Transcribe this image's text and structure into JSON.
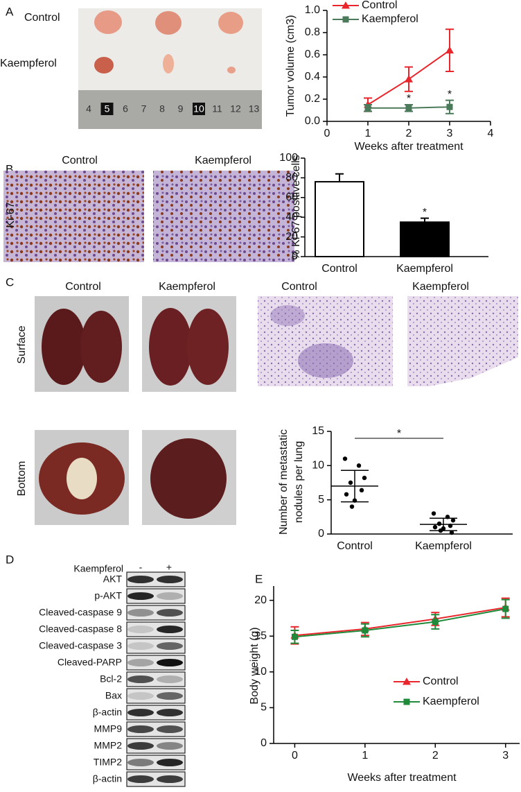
{
  "panels": [
    "A",
    "B",
    "C",
    "D",
    "E"
  ],
  "tumor_photo": {
    "rows": [
      "Control",
      "Kaempferol"
    ],
    "ruler": [
      "4",
      "5",
      "6",
      "7",
      "8",
      "9",
      "10",
      "11",
      "12",
      "13"
    ]
  },
  "ki67": {
    "columns": [
      "Control",
      "Kaempferol"
    ],
    "row": "Ki-67"
  },
  "lung": {
    "columns": [
      "Control",
      "Kaempferol"
    ],
    "rows": [
      "Surface",
      "Bottom"
    ],
    "histology_columns": [
      "Control",
      "Kaempferol"
    ]
  },
  "blot": {
    "treatment": "Kaempferol",
    "lanes": [
      "-",
      "+"
    ],
    "rows": [
      "AKT",
      "p-AKT",
      "Cleaved-caspase 9",
      "Cleaved-caspase 8",
      "Cleaved-caspase 3",
      "Cleaved-PARP",
      "Bcl-2",
      "Bax",
      "β-actin",
      "MMP9",
      "MMP2",
      "TIMP2",
      "β-actin"
    ]
  },
  "chart_data": [
    {
      "type": "line",
      "ylabel": "Tumor volume (cm3)",
      "xlabel": "Weeks after treatment",
      "x": [
        1,
        2,
        3
      ],
      "xlim": [
        0,
        4
      ],
      "xticks": [
        0,
        1,
        2,
        3,
        4
      ],
      "ylim": [
        0,
        1
      ],
      "yticks": [
        {
          "value": 0,
          "label": "0.0"
        },
        0.2,
        0.4,
        0.6,
        0.8,
        {
          "value": 1,
          "label": "1.0"
        }
      ],
      "legend": "top",
      "series": [
        {
          "name": "Control",
          "color": "#e8262b",
          "marker": "triangle",
          "values": [
            0.15,
            0.38,
            0.64
          ],
          "errors": [
            0.06,
            0.11,
            0.19
          ]
        },
        {
          "name": "Kaempferol",
          "color": "#4a7a5a",
          "marker": "square",
          "values": [
            0.12,
            0.12,
            0.13
          ],
          "errors": [
            0.03,
            0.03,
            0.06
          ]
        }
      ],
      "annotations": [
        {
          "x": 2,
          "text": "*"
        },
        {
          "x": 3,
          "text": "*"
        }
      ]
    },
    {
      "type": "bar",
      "ylabel": "% Ki-67 positive cells",
      "categories": [
        "Control",
        "Kaempferol"
      ],
      "values": [
        76,
        35
      ],
      "errors": [
        8,
        4
      ],
      "colors": [
        "#ffffff",
        "#000000"
      ],
      "ylim": [
        0,
        100
      ],
      "yticks": [
        0,
        20,
        40,
        60,
        80,
        100
      ],
      "annotations": [
        {
          "x": "Kaempferol",
          "text": "*"
        }
      ]
    },
    {
      "type": "dot",
      "ylabel": [
        "Number of metastatic",
        "nodules per lung"
      ],
      "categories": [
        "Control",
        "Kaempferol"
      ],
      "points": [
        [
          11,
          10,
          8.2,
          7.5,
          6.4,
          5.8,
          4.9,
          4
        ],
        [
          3,
          2.5,
          2,
          1.5,
          1.2,
          1,
          0.8,
          0.5,
          0.2
        ]
      ],
      "means": [
        7,
        1.4
      ],
      "sds": [
        2.3,
        0.9
      ],
      "color": "#000000",
      "ylim": [
        0,
        15
      ],
      "yticks": [
        0,
        5,
        10,
        15
      ],
      "significance": "*"
    },
    {
      "type": "line",
      "ylabel": "Body weight (g)",
      "xlabel": "Weeks after treatment",
      "x": [
        0,
        1,
        2,
        3
      ],
      "xlim": [
        -0.3,
        3.2
      ],
      "xticks": [
        0,
        1,
        2,
        3
      ],
      "ylim": [
        0,
        22
      ],
      "yticks": [
        0,
        5,
        10,
        15,
        20
      ],
      "legend": "right",
      "series": [
        {
          "name": "Control",
          "color": "#e8262b",
          "marker": "triangle",
          "values": [
            15.1,
            16.0,
            17.4,
            19.0
          ],
          "errors": [
            1.2,
            0.9,
            0.9,
            1.3
          ]
        },
        {
          "name": "Kaempferol",
          "color": "#1e8a3a",
          "marker": "square",
          "values": [
            14.9,
            15.8,
            17.0,
            18.8
          ],
          "errors": [
            0.9,
            0.9,
            1.0,
            1.3
          ]
        }
      ]
    }
  ]
}
